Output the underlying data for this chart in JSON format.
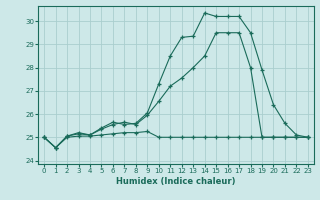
{
  "xlabel": "Humidex (Indice chaleur)",
  "bg_color": "#cde8e8",
  "grid_color": "#aacece",
  "line_color": "#1a6b5a",
  "xlim": [
    -0.5,
    23.5
  ],
  "ylim": [
    23.85,
    30.65
  ],
  "yticks": [
    24,
    25,
    26,
    27,
    28,
    29,
    30
  ],
  "xticks": [
    0,
    1,
    2,
    3,
    4,
    5,
    6,
    7,
    8,
    9,
    10,
    11,
    12,
    13,
    14,
    15,
    16,
    17,
    18,
    19,
    20,
    21,
    22,
    23
  ],
  "line1_x": [
    0,
    1,
    2,
    3,
    4,
    5,
    6,
    7,
    8,
    9,
    10,
    11,
    12,
    13,
    14,
    15,
    16,
    17,
    18,
    19,
    20,
    21,
    22,
    23
  ],
  "line1_y": [
    25.0,
    24.55,
    25.0,
    25.05,
    25.05,
    25.1,
    25.15,
    25.2,
    25.2,
    25.25,
    25.0,
    25.0,
    25.0,
    25.0,
    25.0,
    25.0,
    25.0,
    25.0,
    25.0,
    25.0,
    25.0,
    25.0,
    25.0,
    25.0
  ],
  "line2_x": [
    0,
    1,
    2,
    3,
    4,
    5,
    6,
    7,
    8,
    9,
    10,
    11,
    12,
    13,
    14,
    15,
    16,
    17,
    18,
    19,
    20,
    21,
    22,
    23
  ],
  "line2_y": [
    25.0,
    24.55,
    25.05,
    25.15,
    25.1,
    25.35,
    25.55,
    25.65,
    25.55,
    25.95,
    26.55,
    27.2,
    27.55,
    28.0,
    28.5,
    29.5,
    29.5,
    29.5,
    28.0,
    25.0,
    25.0,
    25.0,
    25.0,
    25.0
  ],
  "line3_x": [
    0,
    1,
    2,
    3,
    4,
    5,
    6,
    7,
    8,
    9,
    10,
    11,
    12,
    13,
    14,
    15,
    16,
    17,
    18,
    19,
    20,
    21,
    22,
    23
  ],
  "line3_y": [
    25.0,
    24.55,
    25.05,
    25.2,
    25.1,
    25.4,
    25.65,
    25.55,
    25.6,
    26.05,
    27.3,
    28.5,
    29.3,
    29.35,
    30.35,
    30.2,
    30.2,
    30.2,
    29.5,
    27.9,
    26.4,
    25.6,
    25.1,
    25.0
  ]
}
